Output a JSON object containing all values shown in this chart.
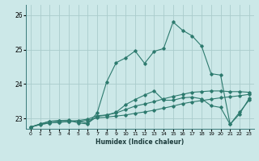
{
  "title": "",
  "xlabel": "Humidex (Indice chaleur)",
  "ylabel": "",
  "bg_color": "#cce8e8",
  "line_color": "#2d7a6e",
  "grid_color": "#aacccc",
  "xlim": [
    -0.5,
    23.5
  ],
  "ylim": [
    22.7,
    26.3
  ],
  "xticks": [
    0,
    1,
    2,
    3,
    4,
    5,
    6,
    7,
    8,
    9,
    10,
    11,
    12,
    13,
    14,
    15,
    16,
    17,
    18,
    19,
    20,
    21,
    22,
    23
  ],
  "yticks": [
    23,
    24,
    25,
    26
  ],
  "series": [
    [
      22.75,
      22.83,
      22.87,
      22.89,
      22.91,
      22.92,
      22.94,
      23.02,
      23.04,
      23.07,
      23.1,
      23.15,
      23.19,
      23.24,
      23.3,
      23.36,
      23.43,
      23.48,
      23.52,
      23.56,
      23.6,
      23.63,
      23.66,
      23.7
    ],
    [
      22.75,
      22.82,
      22.87,
      22.89,
      22.91,
      22.94,
      22.98,
      23.08,
      23.1,
      23.16,
      23.26,
      23.36,
      23.42,
      23.49,
      23.57,
      23.64,
      23.7,
      23.76,
      23.78,
      23.8,
      23.8,
      23.78,
      23.78,
      23.76
    ],
    [
      22.75,
      22.84,
      22.91,
      22.93,
      22.94,
      22.92,
      22.86,
      23.06,
      23.1,
      23.18,
      23.4,
      23.55,
      23.68,
      23.8,
      23.53,
      23.53,
      23.6,
      23.62,
      23.57,
      23.37,
      23.32,
      22.83,
      23.13,
      23.58
    ],
    [
      22.75,
      22.84,
      22.92,
      22.94,
      22.95,
      22.87,
      22.84,
      23.16,
      24.06,
      24.62,
      24.76,
      24.96,
      24.6,
      24.95,
      25.03,
      25.8,
      25.56,
      25.4,
      25.1,
      24.3,
      24.26,
      22.83,
      23.18,
      23.53
    ]
  ]
}
